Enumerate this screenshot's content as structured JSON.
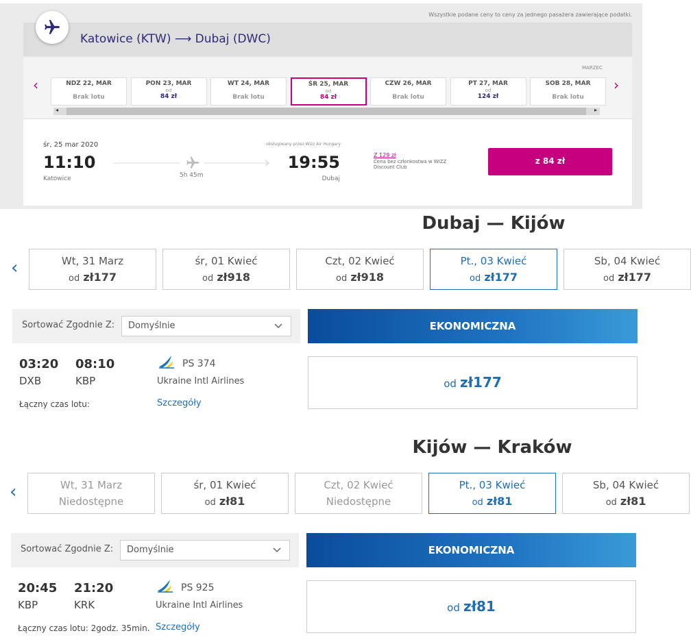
{
  "wizz": {
    "notice": "Wszystkie podane ceny to ceny za jednego pasażera zawierające podatki.",
    "route": "Katowice (KTW) ⟶ Dubaj (DWC)",
    "month": "MARZEC",
    "dates": [
      {
        "day": "NDZ 22, MAR",
        "status": "Brak lotu"
      },
      {
        "day": "PON 23, MAR",
        "from": "od",
        "price": "84 zł"
      },
      {
        "day": "WT 24, MAR",
        "status": "Brak lotu"
      },
      {
        "day": "ŚR 25, MAR",
        "from": "od",
        "price": "84 zł"
      },
      {
        "day": "CZW 26, MAR",
        "status": "Brak lotu"
      },
      {
        "day": "PT 27, MAR",
        "from": "od",
        "price": "124 zł"
      },
      {
        "day": "SOB 28, MAR",
        "status": "Brak lotu"
      }
    ],
    "flight": {
      "date": "śr, 25 mar 2020",
      "departure": "11:10",
      "origin": "Katowice",
      "duration": "5h 45m",
      "operator": "obsługiwany przez Wizz Air Hungary",
      "arrival": "19:55",
      "destination": "Dubaj",
      "member_price": "Z 129 zł",
      "member_note": "Cena bez członkostwa w WIZZ Discount Club",
      "button": "z 84 zł"
    }
  },
  "legs": [
    {
      "title": "Dubaj — Kijów",
      "dates": [
        {
          "day": "Wt, 31 Marz",
          "from": "od",
          "price": "zł177"
        },
        {
          "day": "śr, 01 Kwieć",
          "from": "od",
          "price": "zł918"
        },
        {
          "day": "Czt, 02 Kwieć",
          "from": "od",
          "price": "zł918"
        },
        {
          "day": "Pt., 03 Kwieć",
          "from": "od",
          "price": "zł177"
        },
        {
          "day": "Sb, 04 Kwieć",
          "from": "od",
          "price": "zł177"
        }
      ],
      "sort_label": "Sortować Zgodnie Z:",
      "sort_value": "Domyślnie",
      "cabin": "EKONOMICZNA",
      "flight": {
        "departure": "03:20",
        "arrival": "08:10",
        "origin": "DXB",
        "destination": "KBP",
        "number": "PS 374",
        "airline": "Ukraine Intl Airlines",
        "duration_label": "Łączny czas lotu:",
        "details": "Szczegóły",
        "fare_from": "od",
        "fare_price": "zł177"
      }
    },
    {
      "title": "Kijów — Kraków",
      "dates": [
        {
          "day": "Wt, 31 Marz",
          "status": "Niedostępne"
        },
        {
          "day": "śr, 01 Kwieć",
          "from": "od",
          "price": "zł81"
        },
        {
          "day": "Czt, 02 Kwieć",
          "status": "Niedostępne"
        },
        {
          "day": "Pt., 03 Kwieć",
          "from": "od",
          "price": "zł81"
        },
        {
          "day": "Sb, 04 Kwieć",
          "from": "od",
          "price": "zł81"
        }
      ],
      "sort_label": "Sortować Zgodnie Z:",
      "sort_value": "Domyślnie",
      "cabin": "EKONOMICZNA",
      "flight": {
        "departure": "20:45",
        "arrival": "21:20",
        "origin": "KBP",
        "destination": "KRK",
        "number": "PS 925",
        "airline": "Ukraine Intl Airlines",
        "duration_label": "Łączny czas lotu: 2godz. 35min.",
        "details": "Szczegóły",
        "fare_from": "od",
        "fare_price": "zł81"
      }
    }
  ]
}
